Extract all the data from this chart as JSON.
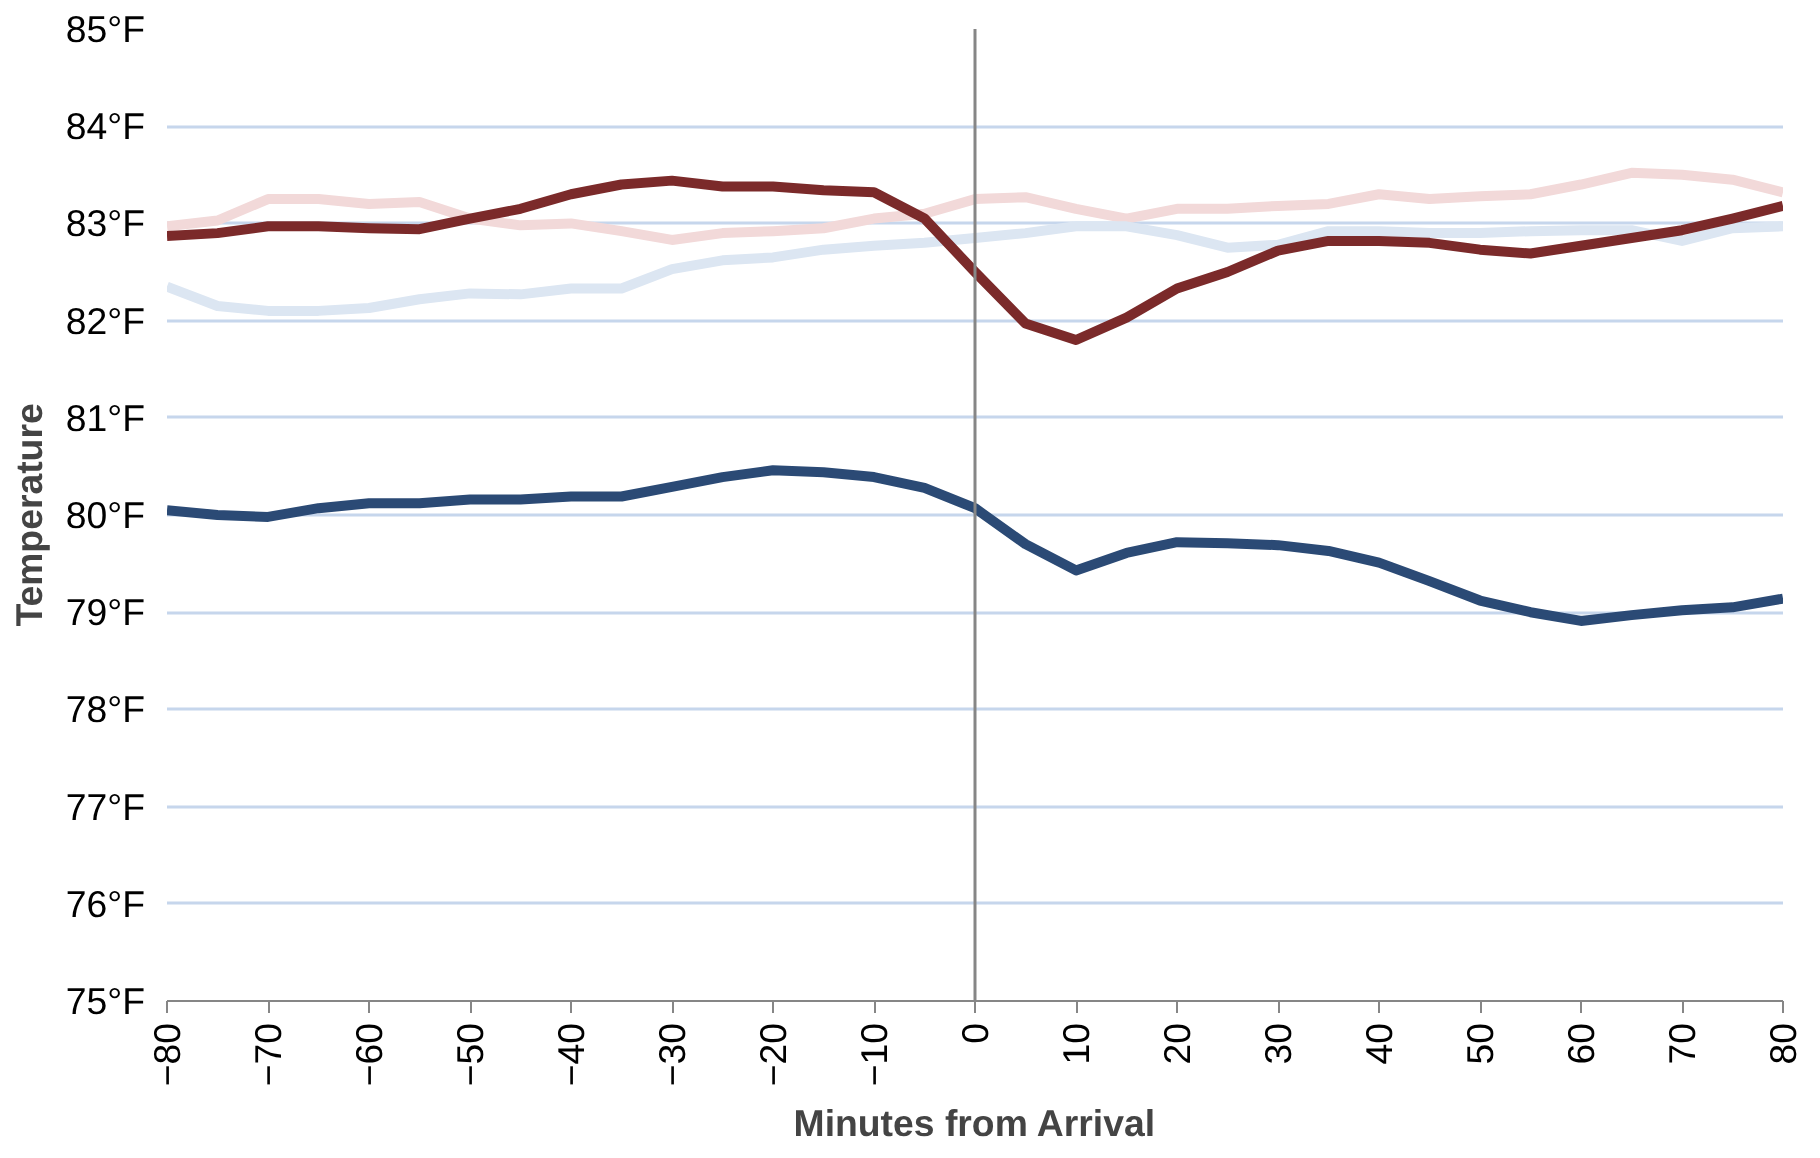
{
  "chart_data": {
    "type": "line",
    "xlabel": "Minutes from Arrival",
    "ylabel": "Temperature",
    "x": [
      -80,
      -75,
      -70,
      -65,
      -60,
      -55,
      -50,
      -45,
      -40,
      -35,
      -30,
      -25,
      -20,
      -15,
      -10,
      -5,
      0,
      5,
      10,
      15,
      20,
      25,
      30,
      35,
      40,
      45,
      50,
      55,
      60,
      65,
      70,
      75,
      80
    ],
    "series": [
      {
        "color": "#f2d9d9",
        "values": [
          82.97,
          83.03,
          83.25,
          83.25,
          83.2,
          83.22,
          83.05,
          82.98,
          83.0,
          82.92,
          82.83,
          82.9,
          82.92,
          82.95,
          83.05,
          83.1,
          83.25,
          83.27,
          83.15,
          83.05,
          83.15,
          83.15,
          83.18,
          83.2,
          83.3,
          83.25,
          83.28,
          83.3,
          83.4,
          83.52,
          83.5,
          83.45,
          83.32
        ]
      },
      {
        "color": "#dce6f2",
        "values": [
          82.35,
          82.15,
          82.1,
          82.1,
          82.13,
          82.22,
          82.28,
          82.27,
          82.33,
          82.33,
          82.53,
          82.62,
          82.65,
          82.73,
          82.77,
          82.8,
          82.85,
          82.9,
          82.97,
          82.97,
          82.88,
          82.75,
          82.78,
          82.92,
          82.92,
          82.9,
          82.9,
          82.92,
          82.93,
          82.93,
          82.82,
          82.95,
          82.97
        ]
      },
      {
        "color": "#7b2a2a",
        "values": [
          82.87,
          82.9,
          82.97,
          82.97,
          82.95,
          82.94,
          83.05,
          83.15,
          83.3,
          83.4,
          83.44,
          83.38,
          83.38,
          83.34,
          83.32,
          83.05,
          82.5,
          81.97,
          81.8,
          82.03,
          82.33,
          82.5,
          82.72,
          82.82,
          82.82,
          82.8,
          82.73,
          82.69,
          82.77,
          82.85,
          82.93,
          83.05,
          83.18
        ]
      },
      {
        "color": "#2b4a75",
        "values": [
          80.05,
          80.0,
          79.98,
          80.07,
          80.12,
          80.12,
          80.16,
          80.16,
          80.19,
          80.19,
          80.29,
          80.39,
          80.46,
          80.44,
          80.39,
          80.28,
          80.07,
          79.7,
          79.43,
          79.61,
          79.72,
          79.71,
          79.69,
          79.63,
          79.51,
          79.32,
          79.12,
          79.0,
          78.91,
          78.97,
          79.02,
          79.05,
          79.14
        ]
      }
    ],
    "xlim": [
      -80,
      80
    ],
    "xticks": [
      -80,
      -70,
      -60,
      -50,
      -40,
      -30,
      -20,
      -10,
      0,
      10,
      20,
      30,
      40,
      50,
      60,
      70,
      80
    ],
    "ylim": [
      75,
      85
    ],
    "yticks": [
      {
        "value": 75,
        "label": "75°F"
      },
      {
        "value": 76,
        "label": "76°F"
      },
      {
        "value": 77,
        "label": "77°F"
      },
      {
        "value": 78,
        "label": "78°F"
      },
      {
        "value": 79,
        "label": "79°F"
      },
      {
        "value": 80,
        "label": "80°F"
      },
      {
        "value": 81,
        "label": "81°F"
      },
      {
        "value": 82,
        "label": "82°F"
      },
      {
        "value": 83,
        "label": "83°F"
      },
      {
        "value": 84,
        "label": "84°F"
      },
      {
        "value": 85,
        "label": "85°F"
      }
    ],
    "ref_lines": [
      {
        "axis": "x",
        "value": 0,
        "color": "#868686"
      }
    ],
    "grid": "y",
    "marker": "none",
    "line_style": "solid"
  }
}
